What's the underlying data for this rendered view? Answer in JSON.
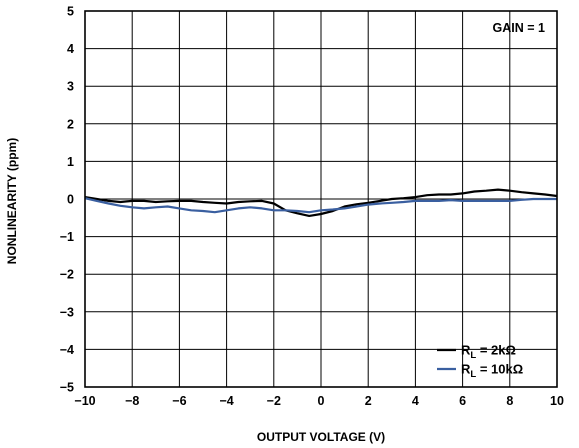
{
  "chart_data": {
    "type": "line",
    "title": "",
    "xlabel": "OUTPUT VOLTAGE (V)",
    "ylabel": "NONLINEARITY (ppm)",
    "xlim": [
      -10,
      10
    ],
    "ylim": [
      -5,
      5
    ],
    "x_ticks": [
      -10,
      -8,
      -6,
      -4,
      -2,
      0,
      2,
      4,
      6,
      8,
      10
    ],
    "y_ticks": [
      -5,
      -4,
      -3,
      -2,
      -1,
      0,
      1,
      2,
      3,
      4,
      5
    ],
    "x_tick_labels": [
      "−10",
      "−8",
      "−6",
      "−4",
      "−2",
      "0",
      "2",
      "4",
      "6",
      "8",
      "10"
    ],
    "y_tick_labels": [
      "−5",
      "−4",
      "−3",
      "−2",
      "−1",
      "0",
      "1",
      "2",
      "3",
      "4",
      "5"
    ],
    "grid": true,
    "annotation": "GAIN = 1",
    "legend_position": "bottom-right",
    "series": [
      {
        "legend_main": "R",
        "legend_sub": "L",
        "legend_value": " = 2kΩ",
        "color": "#000000",
        "x": [
          -10,
          -9.5,
          -9,
          -8.5,
          -8,
          -7.5,
          -7,
          -6.5,
          -6,
          -5.5,
          -5,
          -4.5,
          -4,
          -3.5,
          -3,
          -2.5,
          -2,
          -1.5,
          -1,
          -0.5,
          0,
          0.5,
          1,
          1.5,
          2,
          2.5,
          3,
          3.5,
          4,
          4.5,
          5,
          5.5,
          6,
          6.5,
          7,
          7.5,
          8,
          8.5,
          9,
          9.5,
          10
        ],
        "y": [
          0.05,
          0.0,
          -0.05,
          -0.08,
          -0.05,
          -0.05,
          -0.08,
          -0.06,
          -0.05,
          -0.05,
          -0.08,
          -0.1,
          -0.12,
          -0.08,
          -0.06,
          -0.05,
          -0.12,
          -0.3,
          -0.38,
          -0.45,
          -0.4,
          -0.32,
          -0.2,
          -0.14,
          -0.1,
          -0.05,
          0.0,
          0.02,
          0.05,
          0.1,
          0.12,
          0.12,
          0.15,
          0.2,
          0.22,
          0.25,
          0.22,
          0.18,
          0.15,
          0.12,
          0.08
        ]
      },
      {
        "legend_main": "R",
        "legend_sub": "L",
        "legend_value": " = 10kΩ",
        "color": "#3a5fa0",
        "x": [
          -10,
          -9.5,
          -9,
          -8.5,
          -8,
          -7.5,
          -7,
          -6.5,
          -6,
          -5.5,
          -5,
          -4.5,
          -4,
          -3.5,
          -3,
          -2.5,
          -2,
          -1.5,
          -1,
          -0.5,
          0,
          0.5,
          1,
          1.5,
          2,
          2.5,
          3,
          3.5,
          4,
          4.5,
          5,
          5.5,
          6,
          6.5,
          7,
          7.5,
          8,
          8.5,
          9,
          9.5,
          10
        ],
        "y": [
          0.02,
          -0.05,
          -0.12,
          -0.18,
          -0.22,
          -0.25,
          -0.22,
          -0.2,
          -0.25,
          -0.3,
          -0.32,
          -0.35,
          -0.3,
          -0.25,
          -0.22,
          -0.25,
          -0.3,
          -0.3,
          -0.32,
          -0.35,
          -0.3,
          -0.28,
          -0.25,
          -0.2,
          -0.15,
          -0.12,
          -0.1,
          -0.08,
          -0.05,
          -0.05,
          -0.05,
          -0.03,
          -0.05,
          -0.05,
          -0.05,
          -0.05,
          -0.05,
          -0.02,
          0.0,
          0.0,
          0.0
        ]
      }
    ]
  }
}
